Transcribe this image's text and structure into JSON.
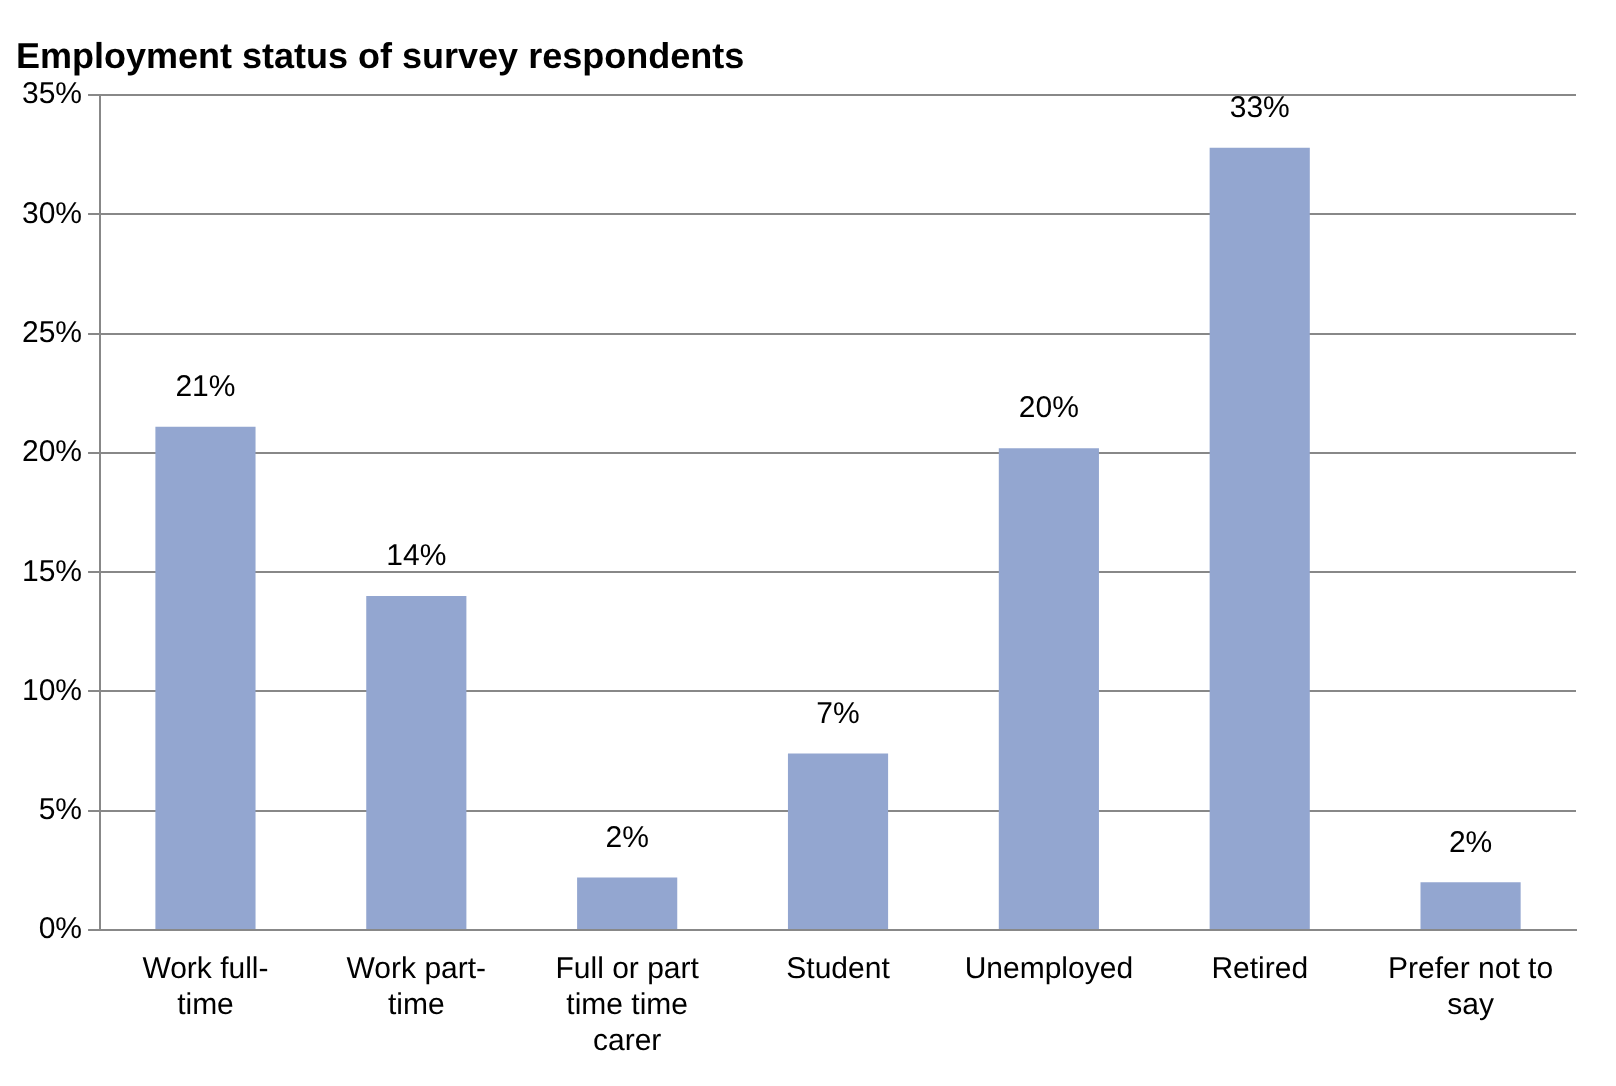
{
  "chart_data": {
    "type": "bar",
    "title": "Employment status of survey respondents",
    "categories": [
      "Work full-time",
      "Work part-time",
      "Full or part time time carer",
      "Student",
      "Unemployed",
      "Retired",
      "Prefer not to say"
    ],
    "values": [
      21.1,
      14,
      2.2,
      7.4,
      20.2,
      32.8,
      2
    ],
    "value_labels": [
      "21%",
      "14%",
      "2%",
      "7%",
      "20%",
      "33%",
      "2%"
    ],
    "color": "#93a6d0",
    "ylim": [
      0,
      35
    ],
    "yticks": [
      {
        "value": 0,
        "label": "0%"
      },
      {
        "value": 5,
        "label": "5%"
      },
      {
        "value": 10,
        "label": "10%"
      },
      {
        "value": 15,
        "label": "15%"
      },
      {
        "value": 20,
        "label": "20%"
      },
      {
        "value": 25,
        "label": "25%"
      },
      {
        "value": 30,
        "label": "30%"
      },
      {
        "value": 35,
        "label": "35%"
      }
    ],
    "grid": "y",
    "legend": false
  }
}
